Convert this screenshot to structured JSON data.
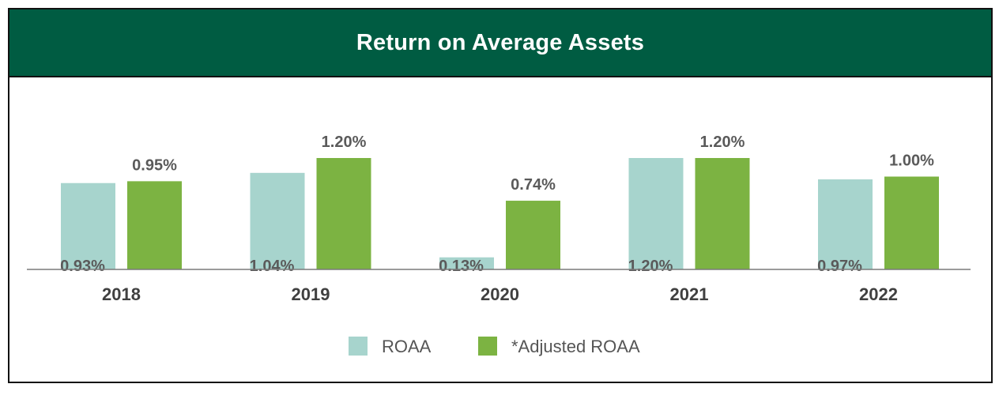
{
  "title": "Return on Average Assets",
  "colors": {
    "header_bg": "#005c42",
    "roaa": "#a7d4cd",
    "adjusted": "#7cb342"
  },
  "chart_data": {
    "type": "bar",
    "categories": [
      "2018",
      "2019",
      "2020",
      "2021",
      "2022"
    ],
    "series": [
      {
        "name": "ROAA",
        "values": [
          0.93,
          1.04,
          0.13,
          1.2,
          0.97
        ],
        "labels": [
          "0.93%",
          "1.04%",
          "0.13%",
          "1.20%",
          "0.97%"
        ]
      },
      {
        "name": "*Adjusted ROAA",
        "values": [
          0.95,
          1.2,
          0.74,
          1.2,
          1.0
        ],
        "labels": [
          "0.95%",
          "1.20%",
          "0.74%",
          "1.20%",
          "1.00%"
        ]
      }
    ],
    "ylim": [
      0,
      1.2
    ],
    "grid": false,
    "legend": "bottom-center"
  }
}
